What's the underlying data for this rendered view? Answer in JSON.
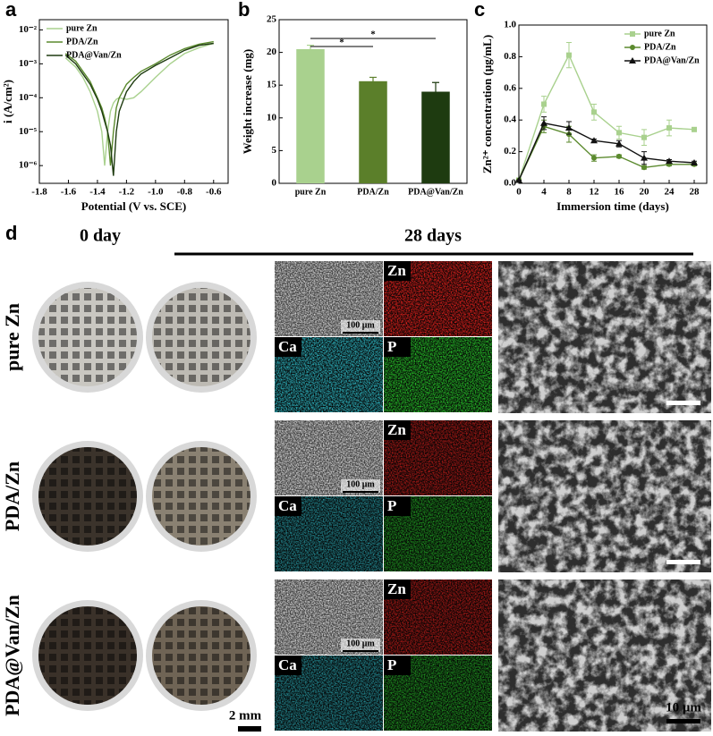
{
  "chart_data": [
    {
      "type": "line",
      "panel": "a",
      "xlabel": "Potential (V vs. SCE)",
      "ylabel": "i (A/cm²)",
      "log_y": true,
      "legend": "upper left",
      "x": [
        -1.62,
        -1.55,
        -1.5,
        -1.45,
        -1.4,
        -1.37,
        -1.35,
        -1.33,
        -1.31,
        -1.29,
        -1.27,
        -1.25,
        -1.2,
        -1.15,
        -1.1,
        -1.0,
        -0.9,
        -0.8,
        -0.7,
        -0.6
      ],
      "series": [
        {
          "name": "pure Zn",
          "color": "#a9d18e",
          "values": [
            0.0015,
            0.0008,
            0.0004,
            0.00015,
            4e-05,
            1e-05,
            1e-06,
            1e-05,
            4e-05,
            7e-05,
            9e-05,
            0.0001,
            9e-05,
            0.0001,
            0.00015,
            0.0004,
            0.001,
            0.002,
            0.003,
            0.004
          ]
        },
        {
          "name": "PDA/Zn",
          "color": "#5b8a2e",
          "values": [
            0.002,
            0.0012,
            0.0006,
            0.0003,
            0.0001,
            5e-05,
            2.5e-05,
            1e-05,
            1e-06,
            1e-05,
            5e-05,
            0.0001,
            0.00025,
            0.0004,
            0.0006,
            0.001,
            0.0018,
            0.0028,
            0.0038,
            0.0045
          ]
        },
        {
          "name": "PDA@Van/Zn",
          "color": "#1e3b10",
          "values": [
            0.0018,
            0.001,
            0.0005,
            0.00025,
            9e-05,
            4e-05,
            2e-05,
            1e-05,
            4e-06,
            5e-07,
            1e-05,
            4e-05,
            0.00015,
            0.0003,
            0.0005,
            0.0009,
            0.0015,
            0.0025,
            0.0035,
            0.004
          ]
        }
      ],
      "xlim": [
        -1.8,
        -0.5
      ],
      "xticks": [
        -1.8,
        -1.6,
        -1.4,
        -1.2,
        {
          "value": -1,
          "label": "-1.0"
        },
        -0.8,
        -0.6
      ],
      "ylim": [
        3e-07,
        0.02
      ],
      "yticks": [
        {
          "value": 1e-06,
          "label": "10⁻⁶"
        },
        {
          "value": 1e-05,
          "label": "10⁻⁵"
        },
        {
          "value": 0.0001,
          "label": "10⁻⁴"
        },
        {
          "value": 0.001,
          "label": "10⁻³"
        },
        {
          "value": 0.01,
          "label": "10⁻²"
        }
      ]
    },
    {
      "type": "bar",
      "panel": "b",
      "ylabel": "Weight increase (mg)",
      "categories": [
        "pure Zn",
        "PDA/Zn",
        "PDA@Van/Zn"
      ],
      "values": [
        20.5,
        15.6,
        14.0
      ],
      "errors": [
        0.6,
        0.6,
        1.4
      ],
      "colors": [
        "#a9d18e",
        "#5b7f2a",
        "#1e3b10"
      ],
      "significance": [
        "*",
        "*"
      ],
      "ylim": [
        0,
        25
      ],
      "yticks": [
        0,
        5,
        10,
        15,
        20,
        25
      ]
    },
    {
      "type": "line",
      "panel": "c",
      "xlabel": "Immersion time (days)",
      "ylabel": "Zn²⁺ concentration (μg/mL)",
      "legend": "upper right",
      "x": [
        0,
        4,
        8,
        12,
        16,
        20,
        24,
        28
      ],
      "series": [
        {
          "name": "pure Zn",
          "color": "#a9d18e",
          "marker": "square",
          "values": [
            0.02,
            0.5,
            0.81,
            0.45,
            0.32,
            0.29,
            0.35,
            0.34
          ],
          "errors": [
            0,
            0.05,
            0.08,
            0.05,
            0.04,
            0.05,
            0.05,
            0.01
          ]
        },
        {
          "name": "PDA/Zn",
          "color": "#5b8a2e",
          "marker": "circle",
          "values": [
            0.02,
            0.36,
            0.31,
            0.16,
            0.17,
            0.1,
            0.12,
            0.12
          ],
          "errors": [
            0,
            0.04,
            0.05,
            0.02,
            0.01,
            0.01,
            0.01,
            0.01
          ]
        },
        {
          "name": "PDA@Van/Zn",
          "color": "#111111",
          "marker": "triangle",
          "values": [
            0.02,
            0.38,
            0.35,
            0.27,
            0.25,
            0.16,
            0.14,
            0.13
          ],
          "errors": [
            0,
            0.04,
            0.04,
            0.01,
            0.02,
            0.04,
            0.01,
            0.01
          ]
        }
      ],
      "xlim": [
        0,
        30
      ],
      "xticks": [
        0,
        4,
        8,
        12,
        16,
        20,
        24,
        28
      ],
      "ylim": [
        0,
        1
      ],
      "yticks": [
        {
          "value": 0,
          "label": "0.0"
        },
        0.2,
        0.4,
        0.6,
        0.8,
        {
          "value": 1,
          "label": "1.0"
        }
      ]
    }
  ],
  "panel_d": {
    "label": "d",
    "columns": [
      "0 day",
      "28 days"
    ],
    "rows": [
      {
        "name": "pure Zn",
        "maps": [
          "Zn",
          "Ca",
          "P"
        ],
        "scale": "100 μm"
      },
      {
        "name": "PDA/Zn",
        "maps": [
          "Zn",
          "Ca",
          "P"
        ],
        "scale": "100 μm"
      },
      {
        "name": "PDA@Van/Zn",
        "maps": [
          "Zn",
          "Ca",
          "P"
        ],
        "scale": "100 μm"
      }
    ],
    "photo_scale": "2 mm",
    "sem_scale": "10 μm"
  }
}
